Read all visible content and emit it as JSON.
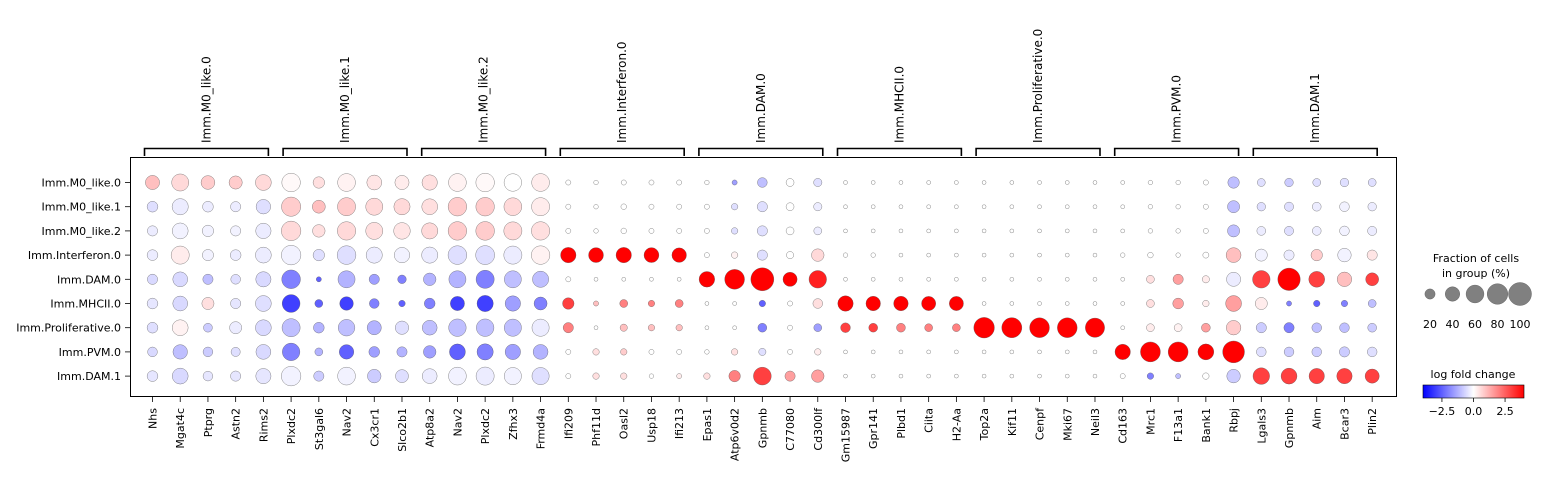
{
  "chart_data": {
    "type": "dotplot",
    "rows": [
      "Imm.M0_like.0",
      "Imm.M0_like.1",
      "Imm.M0_like.2",
      "Imm.Interferon.0",
      "Imm.DAM.0",
      "Imm.MHCII.0",
      "Imm.Proliferative.0",
      "Imm.PVM.0",
      "Imm.DAM.1"
    ],
    "groups": [
      {
        "name": "Imm.M0_like.0",
        "genes": [
          "Nhs",
          "Mgat4c",
          "Ptprg",
          "Astn2",
          "Rims2"
        ]
      },
      {
        "name": "Imm.M0_like.1",
        "genes": [
          "Plxdc2",
          "St3gal6",
          "Nav2",
          "Cx3cr1",
          "Slco2b1"
        ]
      },
      {
        "name": "Imm.M0_like.2",
        "genes": [
          "Atp8a2",
          "Nav2",
          "Plxdc2",
          "Zfhx3",
          "Frmd4a"
        ]
      },
      {
        "name": "Imm.Interferon.0",
        "genes": [
          "Ifi209",
          "Phf11d",
          "Oasl2",
          "Usp18",
          "Ifi213"
        ]
      },
      {
        "name": "Imm.DAM.0",
        "genes": [
          "Epas1",
          "Atp6v0d2",
          "Gpnmb",
          "C77080",
          "Cd300lf"
        ]
      },
      {
        "name": "Imm.MHCII.0",
        "genes": [
          "Gm15987",
          "Gpr141",
          "Plbd1",
          "Ciita",
          "H2-Aa"
        ]
      },
      {
        "name": "Imm.Proliferative.0",
        "genes": [
          "Top2a",
          "Kif11",
          "Cenpf",
          "Mki67",
          "Neil3"
        ]
      },
      {
        "name": "Imm.PVM.0",
        "genes": [
          "Cd163",
          "Mrc1",
          "F13a1",
          "Bank1",
          "Rbpj"
        ]
      },
      {
        "name": "Imm.DAM.1",
        "genes": [
          "Lgals3",
          "Gpnmb",
          "Aim",
          "Bcar3",
          "Plin2"
        ]
      }
    ],
    "fraction_pct": [
      [
        38,
        55,
        36,
        33,
        48,
        65,
        25,
        60,
        42,
        38,
        45,
        60,
        65,
        58,
        60,
        5,
        4,
        5,
        5,
        5,
        4,
        5,
        18,
        12,
        13,
        3,
        3,
        3,
        3,
        3,
        3,
        3,
        3,
        3,
        3,
        3,
        4,
        4,
        5,
        25,
        12,
        14,
        12,
        14,
        12
      ],
      [
        22,
        50,
        22,
        20,
        40,
        70,
        32,
        62,
        55,
        50,
        48,
        65,
        65,
        60,
        62,
        5,
        4,
        6,
        5,
        5,
        5,
        8,
        20,
        12,
        13,
        3,
        3,
        3,
        3,
        3,
        3,
        3,
        3,
        3,
        3,
        3,
        4,
        4,
        5,
        28,
        14,
        16,
        15,
        18,
        14
      ],
      [
        20,
        48,
        25,
        20,
        45,
        72,
        30,
        64,
        55,
        52,
        50,
        65,
        66,
        62,
        64,
        5,
        4,
        6,
        5,
        5,
        5,
        8,
        20,
        12,
        12,
        3,
        3,
        3,
        3,
        3,
        3,
        3,
        3,
        3,
        3,
        3,
        4,
        4,
        5,
        28,
        15,
        16,
        15,
        18,
        16
      ],
      [
        22,
        62,
        24,
        22,
        48,
        72,
        25,
        66,
        50,
        45,
        50,
        66,
        68,
        62,
        65,
        45,
        42,
        45,
        42,
        40,
        5,
        8,
        20,
        10,
        30,
        4,
        4,
        3,
        3,
        3,
        3,
        3,
        3,
        3,
        3,
        4,
        6,
        4,
        7,
        42,
        28,
        20,
        25,
        35,
        20
      ],
      [
        20,
        42,
        20,
        18,
        44,
        66,
        5,
        55,
        20,
        14,
        30,
        55,
        62,
        55,
        50,
        5,
        3,
        3,
        3,
        3,
        46,
        74,
        100,
        38,
        58,
        3,
        3,
        3,
        3,
        3,
        3,
        3,
        3,
        3,
        3,
        3,
        12,
        20,
        10,
        38,
        58,
        95,
        48,
        40,
        32
      ],
      [
        22,
        42,
        28,
        20,
        48,
        60,
        12,
        35,
        18,
        8,
        22,
        38,
        50,
        45,
        32,
        25,
        5,
        12,
        8,
        12,
        3,
        3,
        8,
        5,
        18,
        45,
        40,
        40,
        38,
        38,
        3,
        3,
        3,
        3,
        3,
        3,
        12,
        22,
        8,
        48,
        28,
        5,
        8,
        8,
        12
      ],
      [
        22,
        48,
        15,
        28,
        48,
        62,
        22,
        52,
        38,
        34,
        42,
        58,
        58,
        56,
        56,
        20,
        3,
        10,
        8,
        8,
        3,
        3,
        15,
        5,
        12,
        18,
        15,
        15,
        12,
        12,
        80,
        76,
        74,
        74,
        70,
        3,
        12,
        12,
        15,
        40,
        20,
        20,
        18,
        18,
        15
      ],
      [
        18,
        40,
        18,
        16,
        42,
        58,
        12,
        40,
        22,
        20,
        30,
        48,
        50,
        45,
        42,
        5,
        8,
        8,
        5,
        5,
        4,
        8,
        10,
        5,
        8,
        3,
        3,
        3,
        3,
        3,
        3,
        3,
        3,
        3,
        3,
        45,
        75,
        75,
        48,
        90,
        18,
        18,
        18,
        20,
        18
      ],
      [
        22,
        48,
        18,
        20,
        44,
        72,
        20,
        60,
        35,
        32,
        42,
        60,
        62,
        56,
        56,
        5,
        8,
        8,
        4,
        5,
        8,
        25,
        60,
        20,
        30,
        3,
        3,
        3,
        3,
        3,
        3,
        3,
        3,
        3,
        3,
        5,
        8,
        5,
        8,
        35,
        52,
        48,
        45,
        45,
        38
      ]
    ],
    "log_fold_change": [
      [
        1.0,
        0.6,
        0.8,
        0.8,
        0.6,
        0.1,
        0.5,
        0.2,
        0.4,
        0.3,
        0.5,
        0.2,
        0.1,
        0.0,
        0.3,
        0.0,
        0.0,
        0.0,
        0.0,
        0.0,
        0.0,
        -1.5,
        -1.0,
        0.0,
        -0.5,
        0.0,
        0.0,
        0.0,
        0.0,
        0.0,
        0.0,
        0.0,
        0.0,
        0.0,
        0.0,
        0.0,
        0.0,
        0.0,
        0.0,
        -1.0,
        -0.5,
        -0.8,
        -0.5,
        -0.5,
        -0.5
      ],
      [
        -0.5,
        -0.3,
        -0.3,
        -0.3,
        -0.5,
        0.8,
        1.0,
        0.8,
        0.6,
        0.6,
        0.5,
        0.8,
        0.8,
        0.6,
        0.3,
        0.0,
        0.0,
        0.0,
        0.0,
        0.0,
        0.0,
        -0.5,
        -0.5,
        0.0,
        -0.3,
        0.0,
        0.0,
        0.0,
        0.0,
        0.0,
        0.0,
        0.0,
        0.0,
        0.0,
        0.0,
        0.0,
        0.0,
        0.0,
        0.0,
        -1.0,
        -0.5,
        -0.5,
        -0.3,
        -0.2,
        -0.3
      ],
      [
        -0.3,
        -0.2,
        -0.2,
        -0.2,
        -0.3,
        0.6,
        0.5,
        0.6,
        0.5,
        0.4,
        0.6,
        0.8,
        0.8,
        0.6,
        0.5,
        0.0,
        0.0,
        0.0,
        0.0,
        0.0,
        0.0,
        -0.5,
        -0.5,
        0.0,
        -0.3,
        0.0,
        0.0,
        0.0,
        0.0,
        0.0,
        0.0,
        0.0,
        0.0,
        0.0,
        0.0,
        0.0,
        0.0,
        0.0,
        0.0,
        -1.0,
        -0.3,
        -0.5,
        -0.3,
        -0.2,
        -0.3
      ],
      [
        -0.3,
        0.3,
        -0.2,
        -0.3,
        -0.3,
        -0.2,
        -0.5,
        -0.5,
        -0.3,
        -0.2,
        -0.3,
        -0.5,
        -0.5,
        -0.3,
        0.2,
        4.0,
        4.0,
        4.0,
        4.0,
        4.0,
        0.0,
        0.2,
        -0.5,
        0.0,
        0.6,
        0.0,
        0.0,
        0.0,
        0.0,
        0.0,
        0.0,
        0.0,
        0.0,
        0.0,
        0.0,
        0.0,
        0.0,
        0.0,
        0.0,
        1.0,
        -0.2,
        -0.3,
        0.8,
        -0.2,
        0.4
      ],
      [
        -0.6,
        -0.6,
        -1.0,
        -0.5,
        -0.6,
        -2.0,
        -2.5,
        -1.2,
        -1.5,
        -2.0,
        -1.2,
        -1.2,
        -2.0,
        -1.0,
        -1.0,
        0.0,
        0.0,
        0.0,
        0.0,
        0.0,
        4.0,
        4.0,
        4.0,
        4.0,
        3.5,
        0.0,
        0.0,
        0.0,
        0.0,
        0.0,
        0.0,
        0.0,
        0.0,
        0.0,
        0.0,
        0.0,
        0.5,
        1.5,
        0.3,
        -0.3,
        3.0,
        4.0,
        3.0,
        1.0,
        3.0
      ],
      [
        -0.4,
        -0.6,
        0.5,
        -0.4,
        -0.5,
        -3.0,
        -2.5,
        -3.0,
        -2.0,
        -2.5,
        -2.0,
        -3.0,
        -3.0,
        -1.5,
        -2.0,
        3.0,
        1.0,
        2.0,
        2.0,
        2.0,
        0.0,
        0.0,
        -2.5,
        0.0,
        0.5,
        4.0,
        4.0,
        4.0,
        4.0,
        4.0,
        0.0,
        0.0,
        0.0,
        0.0,
        0.0,
        0.0,
        0.5,
        1.5,
        0.3,
        1.5,
        0.3,
        -2.0,
        -2.5,
        -2.0,
        -1.0
      ],
      [
        -0.5,
        0.2,
        -0.8,
        -0.3,
        -0.6,
        -1.0,
        -1.2,
        -1.0,
        -1.2,
        -0.5,
        -1.0,
        -1.0,
        -1.0,
        -1.0,
        -0.3,
        2.0,
        0.0,
        1.0,
        1.0,
        1.0,
        0.0,
        0.0,
        -2.0,
        0.0,
        -1.5,
        3.0,
        3.0,
        2.0,
        2.0,
        2.0,
        4.0,
        4.0,
        4.0,
        4.0,
        4.0,
        0.0,
        0.3,
        0.2,
        1.5,
        0.8,
        -0.8,
        -2.0,
        -1.0,
        -1.0,
        -0.8
      ],
      [
        -0.6,
        -1.0,
        -0.8,
        -0.5,
        -0.6,
        -2.0,
        -1.2,
        -2.5,
        -1.5,
        -1.2,
        -1.5,
        -2.5,
        -2.0,
        -1.5,
        -1.2,
        0.0,
        0.5,
        0.8,
        0.0,
        0.0,
        0.0,
        0.5,
        -0.5,
        0.0,
        0.3,
        0.0,
        0.0,
        0.0,
        0.0,
        0.0,
        0.0,
        0.0,
        0.0,
        0.0,
        0.0,
        4.0,
        4.0,
        4.0,
        4.0,
        4.0,
        -0.5,
        -0.8,
        -0.8,
        -0.8,
        -0.5
      ],
      [
        -0.4,
        -0.6,
        -0.4,
        -0.4,
        -0.4,
        -0.2,
        -0.8,
        -0.2,
        -0.8,
        -0.5,
        -0.3,
        -0.2,
        -0.3,
        -0.2,
        -0.5,
        0.0,
        0.5,
        0.5,
        0.0,
        0.3,
        0.5,
        2.0,
        3.0,
        1.5,
        1.5,
        0.0,
        0.0,
        0.0,
        0.0,
        0.0,
        0.0,
        0.0,
        0.0,
        0.0,
        0.0,
        0.0,
        -2.0,
        -1.0,
        0.0,
        -0.8,
        3.0,
        3.0,
        3.0,
        3.0,
        3.0
      ]
    ],
    "size_legend": {
      "title_line1": "Fraction of cells",
      "title_line2": "in group (%)",
      "values": [
        20,
        40,
        60,
        80,
        100
      ],
      "labels": [
        "20",
        "40",
        "60",
        "80",
        "100"
      ]
    },
    "color_legend": {
      "title": "log fold change",
      "vmin": -4,
      "vmax": 4,
      "ticks": [
        -2.5,
        0.0,
        2.5
      ],
      "tick_labels": [
        "−2.5",
        "0.0",
        "2.5"
      ],
      "colors": [
        "#0000ff",
        "#ffffff",
        "#ff0000"
      ]
    }
  }
}
